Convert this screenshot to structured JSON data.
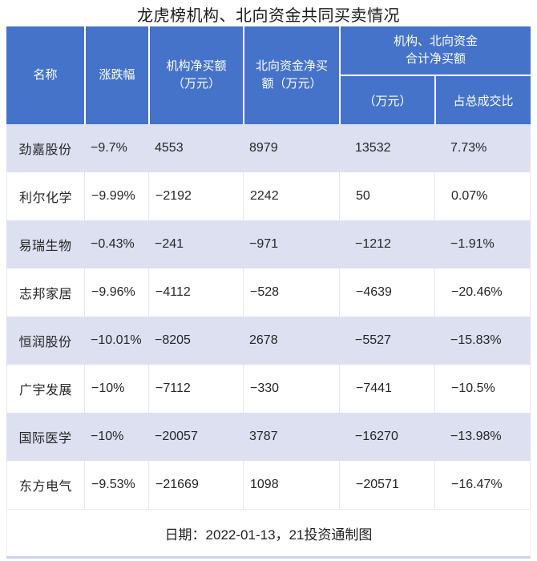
{
  "title": "龙虎榜机构、北向资金共同买卖情况",
  "chart_data": {
    "type": "table",
    "title": "龙虎榜机构、北向资金共同买卖情况",
    "header": {
      "name": "名称",
      "change": "涨跌幅",
      "inst_net_buy": "机构净买额\n（万元）",
      "north_net_buy": "北向资金净买\n额（万元）",
      "combined_group": "机构、北向资金\n合计净买额",
      "combined_amount": "（万元）",
      "combined_ratio": "占总成交比"
    },
    "rows": [
      {
        "cells": [
          "劲嘉股份",
          "−9.7%",
          "4553",
          "8979",
          "13532",
          "7.73%"
        ]
      },
      {
        "cells": [
          "利尔化学",
          "−9.99%",
          "−2192",
          "2242",
          "50",
          "0.07%"
        ]
      },
      {
        "cells": [
          "易瑞生物",
          "−0.43%",
          "−241",
          "−971",
          "−1212",
          "−1.91%"
        ]
      },
      {
        "cells": [
          "志邦家居",
          "−9.96%",
          "−4112",
          "−528",
          "−4639",
          "−20.46%"
        ]
      },
      {
        "cells": [
          "恒润股份",
          "−10.01%",
          "−8205",
          "2678",
          "−5527",
          "−15.83%"
        ]
      },
      {
        "cells": [
          "广宇发展",
          "−10%",
          "−7112",
          "−330",
          "−7441",
          "−10.5%"
        ]
      },
      {
        "cells": [
          "国际医学",
          "−10%",
          "−20057",
          "3787",
          "−16270",
          "−13.98%"
        ]
      },
      {
        "cells": [
          "东方电气",
          "−9.53%",
          "−21669",
          "1098",
          "−20571",
          "−16.47%"
        ]
      }
    ]
  },
  "footer": {
    "note": "日期：2022-01-13，21投资通制图"
  },
  "colors": {
    "header_bg": "#4573c9",
    "header_text": "#ffffff",
    "alt_row_bg": "#dce0f0",
    "row_bg": "#ffffff",
    "grid_line": "#e4e7f4",
    "bottom_strip": "#cbd3ec",
    "body_text": "#262626"
  }
}
